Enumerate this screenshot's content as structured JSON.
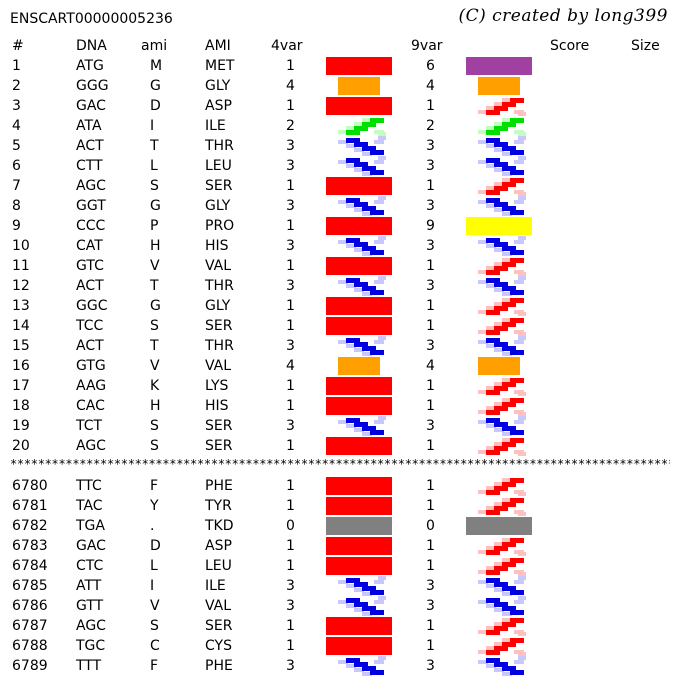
{
  "header": {
    "sequence_id": "ENSCART00000005236",
    "credit": "(C) created by long399",
    "columns": {
      "num": "#",
      "dna": "DNA",
      "ami": "ami",
      "AMI": "AMI",
      "var4": "4var",
      "var9": "9var",
      "score": "Score",
      "size": "Size"
    }
  },
  "colors": {
    "red": "#ff0000",
    "orange": "#ffa000",
    "purple": "#a040a0",
    "yellow": "#ffff00",
    "gray": "#808080",
    "helix_blue": "#0000e0",
    "helix_red": "#ff0000",
    "helix_green": "#00e000"
  },
  "top_rows": [
    {
      "num": "1",
      "dna": "ATG",
      "ami": "M",
      "AMI": "MET",
      "v4": "1",
      "v9": "6",
      "glyph4": "red-bar",
      "glyph9": "purple-bar"
    },
    {
      "num": "2",
      "dna": "GGG",
      "ami": "G",
      "AMI": "GLY",
      "v4": "4",
      "v9": "4",
      "glyph4": "orange-box",
      "glyph9": "orange-box"
    },
    {
      "num": "3",
      "dna": "GAC",
      "ami": "D",
      "AMI": "ASP",
      "v4": "1",
      "v9": "1",
      "glyph4": "red-bar",
      "glyph9": "red-helix"
    },
    {
      "num": "4",
      "dna": "ATA",
      "ami": "I",
      "AMI": "ILE",
      "v4": "2",
      "v9": "2",
      "glyph4": "green-helix",
      "glyph9": "green-helix"
    },
    {
      "num": "5",
      "dna": "ACT",
      "ami": "T",
      "AMI": "THR",
      "v4": "3",
      "v9": "3",
      "glyph4": "blue-helix",
      "glyph9": "blue-helix"
    },
    {
      "num": "6",
      "dna": "CTT",
      "ami": "L",
      "AMI": "LEU",
      "v4": "3",
      "v9": "3",
      "glyph4": "blue-helix",
      "glyph9": "blue-helix"
    },
    {
      "num": "7",
      "dna": "AGC",
      "ami": "S",
      "AMI": "SER",
      "v4": "1",
      "v9": "1",
      "glyph4": "red-bar",
      "glyph9": "red-helix"
    },
    {
      "num": "8",
      "dna": "GGT",
      "ami": "G",
      "AMI": "GLY",
      "v4": "3",
      "v9": "3",
      "glyph4": "blue-helix",
      "glyph9": "blue-helix"
    },
    {
      "num": "9",
      "dna": "CCC",
      "ami": "P",
      "AMI": "PRO",
      "v4": "1",
      "v9": "9",
      "glyph4": "red-bar",
      "glyph9": "yellow-bar"
    },
    {
      "num": "10",
      "dna": "CAT",
      "ami": "H",
      "AMI": "HIS",
      "v4": "3",
      "v9": "3",
      "glyph4": "blue-helix",
      "glyph9": "blue-helix"
    },
    {
      "num": "11",
      "dna": "GTC",
      "ami": "V",
      "AMI": "VAL",
      "v4": "1",
      "v9": "1",
      "glyph4": "red-bar",
      "glyph9": "red-helix"
    },
    {
      "num": "12",
      "dna": "ACT",
      "ami": "T",
      "AMI": "THR",
      "v4": "3",
      "v9": "3",
      "glyph4": "blue-helix",
      "glyph9": "blue-helix"
    },
    {
      "num": "13",
      "dna": "GGC",
      "ami": "G",
      "AMI": "GLY",
      "v4": "1",
      "v9": "1",
      "glyph4": "red-bar",
      "glyph9": "red-helix"
    },
    {
      "num": "14",
      "dna": "TCC",
      "ami": "S",
      "AMI": "SER",
      "v4": "1",
      "v9": "1",
      "glyph4": "red-bar",
      "glyph9": "red-helix"
    },
    {
      "num": "15",
      "dna": "ACT",
      "ami": "T",
      "AMI": "THR",
      "v4": "3",
      "v9": "3",
      "glyph4": "blue-helix",
      "glyph9": "blue-helix"
    },
    {
      "num": "16",
      "dna": "GTG",
      "ami": "V",
      "AMI": "VAL",
      "v4": "4",
      "v9": "4",
      "glyph4": "orange-box",
      "glyph9": "orange-box"
    },
    {
      "num": "17",
      "dna": "AAG",
      "ami": "K",
      "AMI": "LYS",
      "v4": "1",
      "v9": "1",
      "glyph4": "red-bar",
      "glyph9": "red-helix"
    },
    {
      "num": "18",
      "dna": "CAC",
      "ami": "H",
      "AMI": "HIS",
      "v4": "1",
      "v9": "1",
      "glyph4": "red-bar",
      "glyph9": "red-helix"
    },
    {
      "num": "19",
      "dna": "TCT",
      "ami": "S",
      "AMI": "SER",
      "v4": "3",
      "v9": "3",
      "glyph4": "blue-helix",
      "glyph9": "blue-helix"
    },
    {
      "num": "20",
      "dna": "AGC",
      "ami": "S",
      "AMI": "SER",
      "v4": "1",
      "v9": "1",
      "glyph4": "red-bar",
      "glyph9": "red-helix"
    }
  ],
  "separator": "**********************************************************************************************************",
  "bottom_rows": [
    {
      "num": "6780",
      "dna": "TTC",
      "ami": "F",
      "AMI": "PHE",
      "v4": "1",
      "v9": "1",
      "glyph4": "red-bar",
      "glyph9": "red-helix"
    },
    {
      "num": "6781",
      "dna": "TAC",
      "ami": "Y",
      "AMI": "TYR",
      "v4": "1",
      "v9": "1",
      "glyph4": "red-bar",
      "glyph9": "red-helix"
    },
    {
      "num": "6782",
      "dna": "TGA",
      "ami": ".",
      "AMI": "TKD",
      "v4": "0",
      "v9": "0",
      "glyph4": "gray-bar",
      "glyph9": "gray-bar"
    },
    {
      "num": "6783",
      "dna": "GAC",
      "ami": "D",
      "AMI": "ASP",
      "v4": "1",
      "v9": "1",
      "glyph4": "red-bar",
      "glyph9": "red-helix"
    },
    {
      "num": "6784",
      "dna": "CTC",
      "ami": "L",
      "AMI": "LEU",
      "v4": "1",
      "v9": "1",
      "glyph4": "red-bar",
      "glyph9": "red-helix"
    },
    {
      "num": "6785",
      "dna": "ATT",
      "ami": "I",
      "AMI": "ILE",
      "v4": "3",
      "v9": "3",
      "glyph4": "blue-helix",
      "glyph9": "blue-helix"
    },
    {
      "num": "6786",
      "dna": "GTT",
      "ami": "V",
      "AMI": "VAL",
      "v4": "3",
      "v9": "3",
      "glyph4": "blue-helix",
      "glyph9": "blue-helix"
    },
    {
      "num": "6787",
      "dna": "AGC",
      "ami": "S",
      "AMI": "SER",
      "v4": "1",
      "v9": "1",
      "glyph4": "red-bar",
      "glyph9": "red-helix"
    },
    {
      "num": "6788",
      "dna": "TGC",
      "ami": "C",
      "AMI": "CYS",
      "v4": "1",
      "v9": "1",
      "glyph4": "red-bar",
      "glyph9": "red-helix"
    },
    {
      "num": "6789",
      "dna": "TTT",
      "ami": "F",
      "AMI": "PHE",
      "v4": "3",
      "v9": "3",
      "glyph4": "blue-helix",
      "glyph9": "blue-helix"
    }
  ]
}
